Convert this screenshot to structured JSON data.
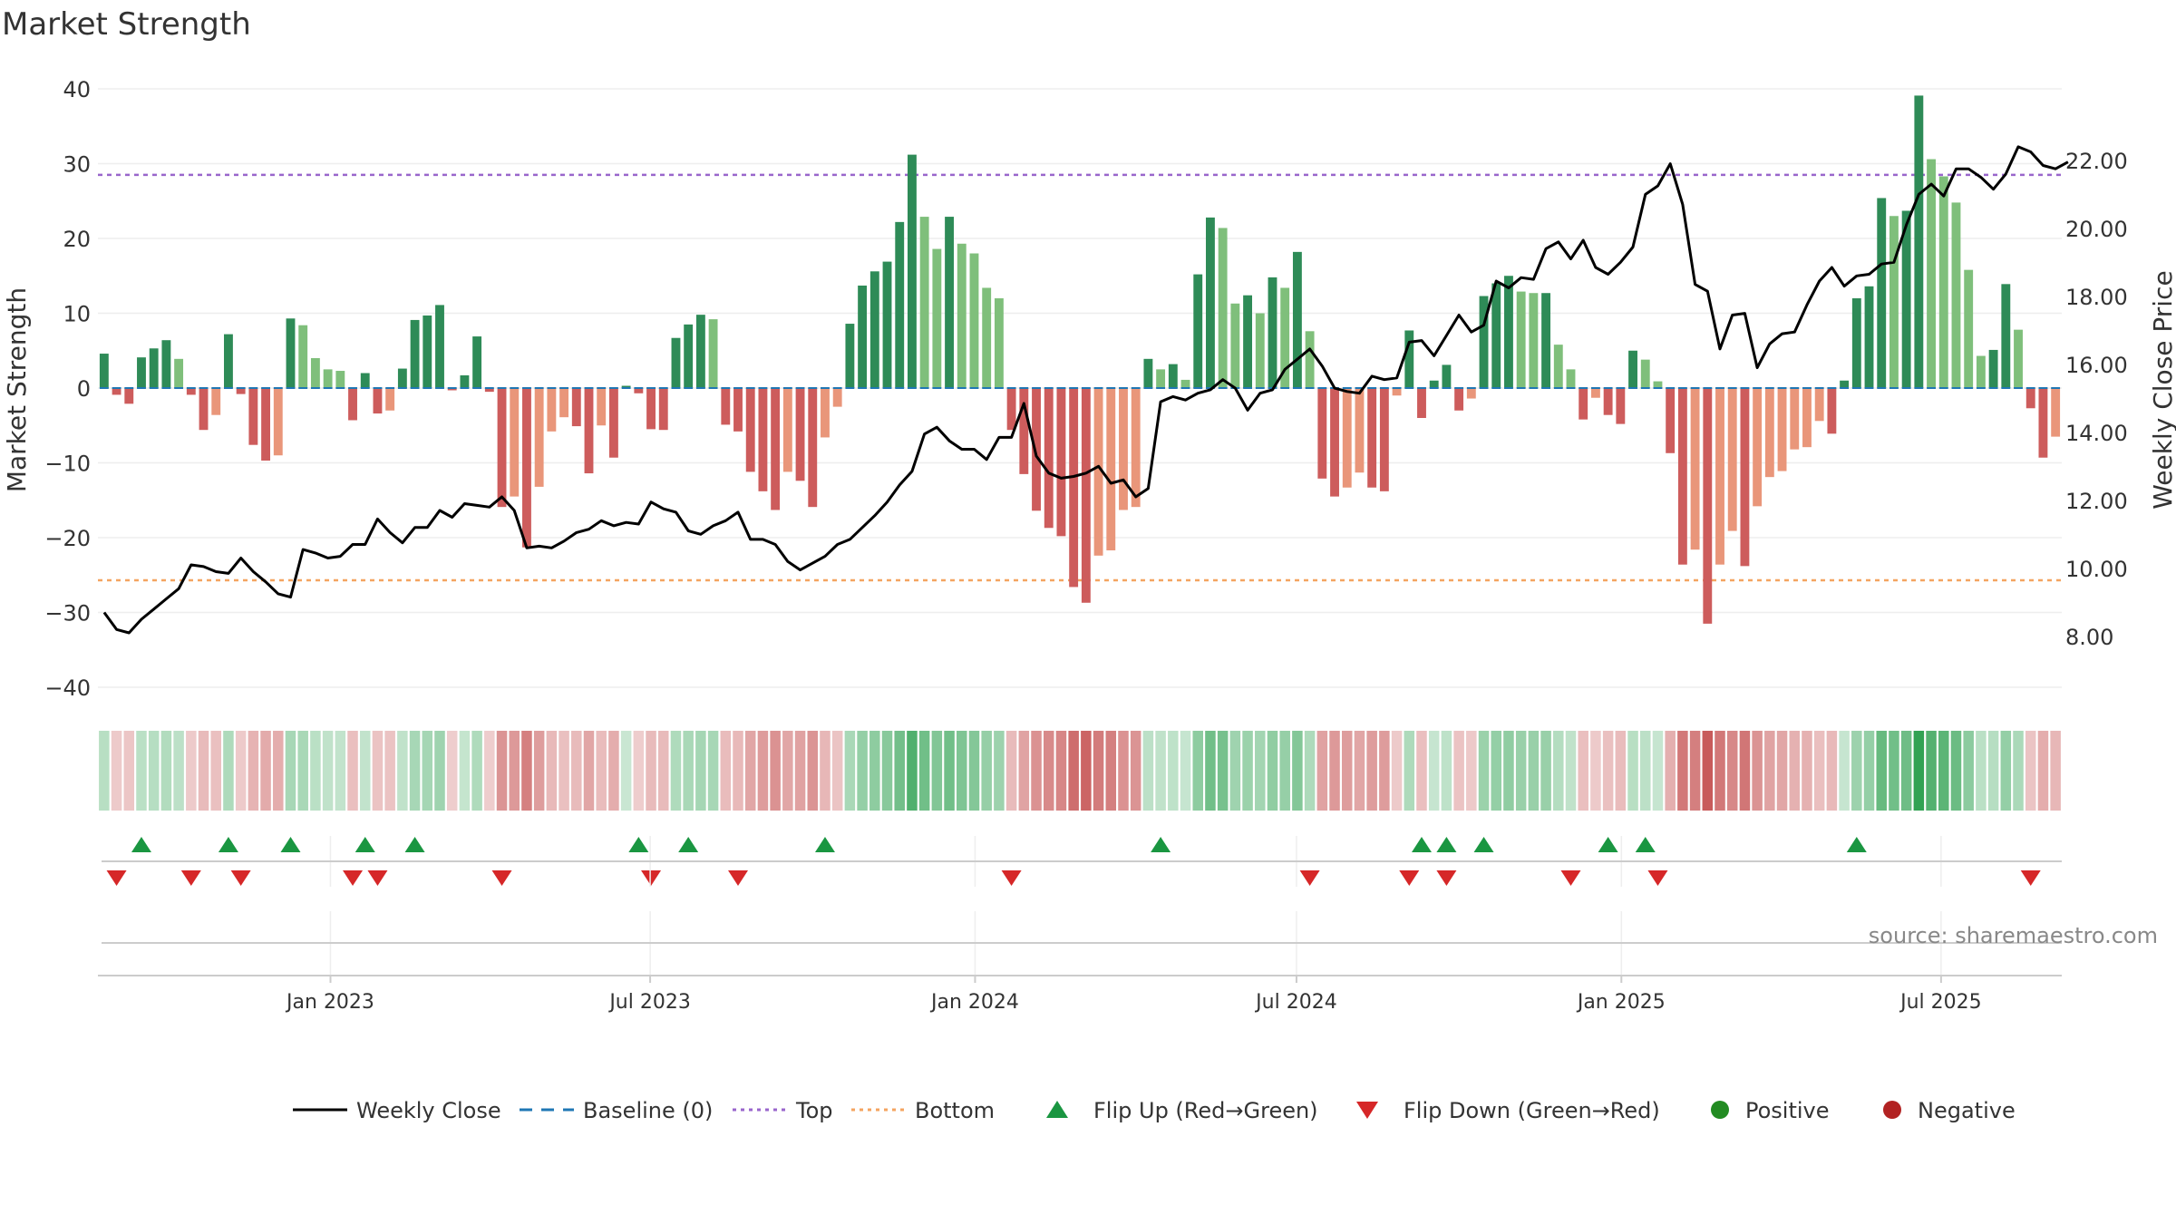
{
  "chart_data": {
    "type": "bar",
    "title": "Market Strength",
    "ylabel": "Market Strength",
    "y2label": "Weekly Close Price",
    "ylim": [
      -40,
      40
    ],
    "y2lim": [
      7.46,
      22.93
    ],
    "yticks": [
      "40",
      "30",
      "20",
      "10",
      "0",
      "−10",
      "−20",
      "−30",
      "−40"
    ],
    "y2ticks": [
      "22.00",
      "20.00",
      "18.00",
      "16.00",
      "14.00",
      "12.00",
      "10.00",
      "8.00"
    ],
    "xticks": [
      "Jan 2023",
      "Jul 2023",
      "Jan 2024",
      "Jul 2024",
      "Jan 2025",
      "Jul 2025"
    ],
    "xtick_positions": [
      18.71,
      44.43,
      70.57,
      96.43,
      122.57,
      148.29
    ],
    "top_level": 28.5,
    "bottom_level": -25.7,
    "source_text": "source: sharemaestro.com",
    "colors": {
      "pos_strong": "#2e8b57",
      "pos_light": "#7fbf7b",
      "neg_strong": "#cd5c5c",
      "neg_light": "#e9967a",
      "line": "#000000",
      "top": "#9966cc",
      "bottom": "#f4a460",
      "baseline": "#1f77b4",
      "flip_up": "#1a9641",
      "flip_down": "#d62728",
      "positive_dot": "#228b22",
      "negative_dot": "#b22222"
    },
    "strength": [
      4.6,
      -0.9,
      -2.1,
      4.1,
      5.3,
      6.4,
      3.9,
      -0.9,
      -5.6,
      -3.6,
      7.2,
      -0.8,
      -7.6,
      -9.7,
      -9.0,
      9.3,
      8.4,
      4.0,
      2.5,
      2.3,
      -4.3,
      2.0,
      -3.4,
      -3.0,
      2.6,
      9.1,
      9.7,
      11.1,
      -0.3,
      1.7,
      6.9,
      -0.5,
      -15.9,
      -14.5,
      -21.3,
      -13.2,
      -5.8,
      -3.9,
      -5.1,
      -11.4,
      -5.0,
      -9.3,
      0.3,
      -0.7,
      -5.5,
      -5.6,
      6.7,
      8.5,
      9.8,
      9.2,
      -4.9,
      -5.8,
      -11.2,
      -13.8,
      -16.3,
      -11.2,
      -12.4,
      -15.9,
      -6.6,
      -2.5,
      8.6,
      13.7,
      15.6,
      16.9,
      22.2,
      31.2,
      22.9,
      18.6,
      22.9,
      19.3,
      18.0,
      13.4,
      12.0,
      -5.6,
      -11.5,
      -16.4,
      -18.7,
      -19.8,
      -26.6,
      -28.7,
      -22.4,
      -21.7,
      -16.3,
      -15.9,
      3.9,
      2.5,
      3.2,
      1.1,
      15.2,
      22.8,
      21.4,
      11.3,
      12.4,
      10.0,
      14.8,
      13.4,
      18.2,
      7.6,
      -12.1,
      -14.5,
      -13.3,
      -11.3,
      -13.3,
      -13.8,
      -1.0,
      7.7,
      -4.0,
      1.0,
      3.1,
      -3.0,
      -1.4,
      12.3,
      14.0,
      15.0,
      12.9,
      12.7,
      12.7,
      5.8,
      2.5,
      -4.2,
      -1.3,
      -3.6,
      -4.8,
      5.0,
      3.8,
      0.9,
      -8.7,
      -23.6,
      -21.6,
      -31.5,
      -23.6,
      -19.1,
      -23.8,
      -15.8,
      -11.9,
      -11.1,
      -8.2,
      -7.9,
      -4.4,
      -6.1,
      1.0,
      12.0,
      13.6,
      25.4,
      23.0,
      23.7,
      39.1,
      30.6,
      28.3,
      24.8,
      15.8,
      4.3,
      5.1,
      13.9,
      7.8,
      -2.7,
      -9.3,
      -6.5
    ],
    "close": [
      8.7,
      8.2,
      8.1,
      8.5,
      8.8,
      9.1,
      9.4,
      10.1,
      10.05,
      9.9,
      9.85,
      10.3,
      9.9,
      9.6,
      9.25,
      9.15,
      10.55,
      10.45,
      10.3,
      10.35,
      10.7,
      10.7,
      11.45,
      11.05,
      10.75,
      11.2,
      11.2,
      11.7,
      11.5,
      11.9,
      11.85,
      11.8,
      12.1,
      11.7,
      10.6,
      10.65,
      10.6,
      10.8,
      11.05,
      11.15,
      11.4,
      11.25,
      11.35,
      11.3,
      11.95,
      11.75,
      11.65,
      11.1,
      11.0,
      11.25,
      11.4,
      11.65,
      10.85,
      10.85,
      10.7,
      10.2,
      9.95,
      10.15,
      10.35,
      10.7,
      10.85,
      11.2,
      11.55,
      11.95,
      12.45,
      12.85,
      13.95,
      14.15,
      13.75,
      13.5,
      13.5,
      13.2,
      13.85,
      13.85,
      14.85,
      13.3,
      12.8,
      12.65,
      12.7,
      12.8,
      13.0,
      12.5,
      12.6,
      12.1,
      12.35,
      14.9,
      15.05,
      14.95,
      15.15,
      15.25,
      15.55,
      15.3,
      14.65,
      15.15,
      15.25,
      15.85,
      16.15,
      16.45,
      15.95,
      15.3,
      15.2,
      15.15,
      15.65,
      15.55,
      15.6,
      16.65,
      16.7,
      16.25,
      16.85,
      17.45,
      16.95,
      17.15,
      18.45,
      18.25,
      18.55,
      18.5,
      19.4,
      19.6,
      19.1,
      19.65,
      18.85,
      18.65,
      19.0,
      19.45,
      21.0,
      21.25,
      21.9,
      20.7,
      18.35,
      18.15,
      16.45,
      17.45,
      17.5,
      15.9,
      16.6,
      16.9,
      16.95,
      17.75,
      18.45,
      18.85,
      18.3,
      18.6,
      18.65,
      18.95,
      19.0,
      20.1,
      21.0,
      21.3,
      20.95,
      21.75,
      21.75,
      21.5,
      21.15,
      21.6,
      22.4,
      22.25,
      21.85,
      21.75,
      21.95
    ],
    "flip_up": [
      3,
      10,
      15,
      21,
      25,
      43,
      47,
      58,
      85,
      106,
      108,
      111,
      121,
      124,
      141
    ],
    "flip_down": [
      1,
      7,
      11,
      20,
      22,
      32,
      44,
      51,
      73,
      97,
      105,
      108,
      118,
      125,
      155
    ],
    "legend": [
      {
        "label": "Weekly Close",
        "kind": "line-solid",
        "color": "#000000"
      },
      {
        "label": "Baseline (0)",
        "kind": "line-dash",
        "color": "#1f77b4"
      },
      {
        "label": "Top",
        "kind": "line-dot",
        "color": "#9966cc"
      },
      {
        "label": "Bottom",
        "kind": "line-dot",
        "color": "#f4a460"
      },
      {
        "label": "Flip Up (Red→Green)",
        "kind": "triangle-up",
        "color": "#1a9641"
      },
      {
        "label": "Flip Down (Green→Red)",
        "kind": "triangle-down",
        "color": "#d62728"
      },
      {
        "label": "Positive",
        "kind": "dot",
        "color": "#228b22"
      },
      {
        "label": "Negative",
        "kind": "dot",
        "color": "#b22222"
      }
    ]
  }
}
